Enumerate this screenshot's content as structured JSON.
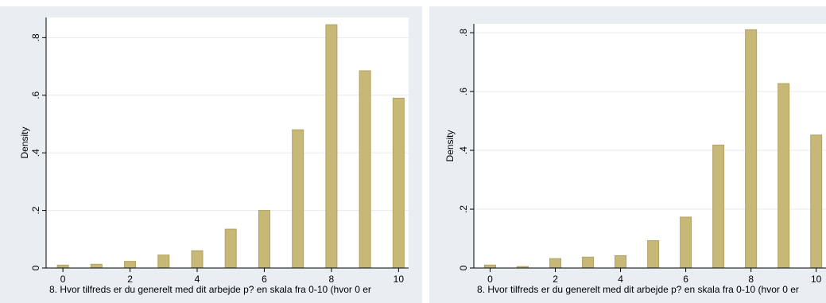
{
  "chart_data": [
    {
      "type": "bar",
      "x": [
        0,
        1,
        2,
        3,
        4,
        5,
        6,
        7,
        8,
        9,
        10
      ],
      "values": [
        0.01,
        0.013,
        0.023,
        0.045,
        0.06,
        0.135,
        0.2,
        0.48,
        0.845,
        0.685,
        0.59
      ],
      "xlabel": "8. Hvor tilfreds er du generelt med dit arbejde p? en skala fra 0-10  (hvor 0 er",
      "ylabel": "Density",
      "xlim": [
        -0.5,
        10.3
      ],
      "ylim": [
        0,
        0.87
      ],
      "xticks": [
        0,
        2,
        4,
        6,
        8,
        10
      ],
      "xtick_labels": [
        "0",
        "2",
        "4",
        "6",
        "8",
        "10"
      ],
      "yticks": [
        0,
        0.2,
        0.4,
        0.6,
        0.8
      ],
      "ytick_labels": [
        "0",
        ".2",
        ".4",
        ".6",
        ".8"
      ],
      "grid": true
    },
    {
      "type": "bar",
      "x": [
        0,
        1,
        2,
        3,
        4,
        5,
        6,
        7,
        8,
        9,
        10
      ],
      "values": [
        0.01,
        0.005,
        0.032,
        0.037,
        0.042,
        0.093,
        0.173,
        0.418,
        0.81,
        0.627,
        0.452
      ],
      "xlabel": "8. Hvor tilfreds er du generelt med dit arbejde p? en skala fra 0-10  (hvor 0 er",
      "ylabel": "Density",
      "xlim": [
        -0.5,
        10.3
      ],
      "ylim": [
        0,
        0.83
      ],
      "xticks": [
        0,
        2,
        4,
        6,
        8,
        10
      ],
      "xtick_labels": [
        "0",
        "2",
        "4",
        "6",
        "8",
        "10"
      ],
      "yticks": [
        0,
        0.2,
        0.4,
        0.6,
        0.8
      ],
      "ytick_labels": [
        "0",
        ".2",
        ".4",
        ".6",
        ".8"
      ],
      "grid": true
    }
  ],
  "colors": {
    "bar_fill": "#c8b878",
    "bar_edge": "#b2a262",
    "panel_background": "#e8eef2",
    "plot_background": "#ffffff"
  }
}
